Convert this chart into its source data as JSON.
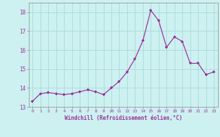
{
  "x": [
    0,
    1,
    2,
    3,
    4,
    5,
    6,
    7,
    8,
    9,
    10,
    11,
    12,
    13,
    14,
    15,
    16,
    17,
    18,
    19,
    20,
    21,
    22,
    23
  ],
  "y": [
    13.3,
    13.7,
    13.75,
    13.7,
    13.65,
    13.7,
    13.8,
    13.9,
    13.8,
    13.65,
    14.0,
    14.35,
    14.85,
    15.55,
    16.5,
    18.1,
    17.55,
    16.15,
    16.7,
    16.45,
    15.3,
    15.3,
    14.7,
    14.85
  ],
  "line_color": "#993399",
  "marker": "+",
  "marker_color": "#993399",
  "bg_color": "#cdf0f0",
  "grid_color": "#aadddd",
  "xlabel": "Windchill (Refroidissement éolien,°C)",
  "xlabel_color": "#993399",
  "tick_color": "#993399",
  "spine_color": "#888888",
  "ylim": [
    13,
    18.5
  ],
  "yticks": [
    13,
    14,
    15,
    16,
    17,
    18
  ],
  "xticks": [
    0,
    1,
    2,
    3,
    4,
    5,
    6,
    7,
    8,
    9,
    10,
    11,
    12,
    13,
    14,
    15,
    16,
    17,
    18,
    19,
    20,
    21,
    22,
    23
  ]
}
